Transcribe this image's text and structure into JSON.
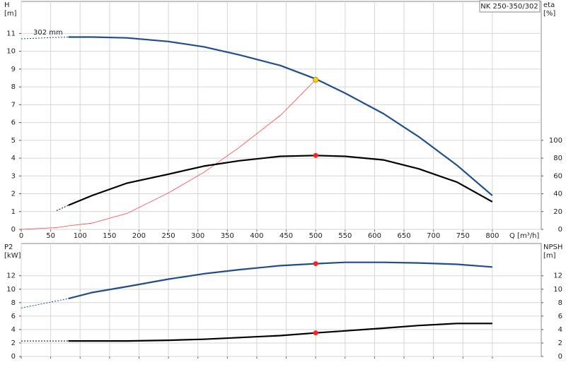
{
  "chart_data": [
    {
      "type": "line",
      "title": "NK 250-350/302",
      "annotation": "302 mm",
      "xlabel": "Q [m³/h]",
      "ylabel": "H",
      "yunit": "[m]",
      "y2label": "eta",
      "y2unit": "[%]",
      "x": [
        0,
        60,
        80,
        120,
        180,
        250,
        310,
        370,
        440,
        500,
        550,
        615,
        675,
        740,
        800
      ],
      "xlim": [
        0,
        883
      ],
      "xticks": [
        0,
        50,
        100,
        150,
        200,
        250,
        300,
        350,
        400,
        450,
        500,
        550,
        600,
        650,
        700,
        750,
        800
      ],
      "xtick_labels": true,
      "ylim": [
        0,
        12.8
      ],
      "yticks": [
        0,
        1,
        2,
        3,
        4,
        5,
        6,
        7,
        8,
        9,
        10,
        11
      ],
      "y2lim": [
        0,
        256
      ],
      "y2ticks": [
        0,
        20,
        40,
        60,
        80,
        100
      ],
      "grid": true,
      "series": [
        {
          "color": "#1f4e8c",
          "style": "dashed",
          "values": [
            10.7,
            10.78,
            10.8,
            null,
            null,
            null,
            null,
            null,
            null,
            null,
            null,
            null,
            null,
            null,
            null
          ]
        },
        {
          "color": "#1f4e8c",
          "style": "solid",
          "values": [
            null,
            null,
            10.8,
            10.8,
            10.75,
            10.55,
            10.25,
            9.8,
            9.2,
            8.45,
            7.65,
            6.5,
            5.2,
            3.6,
            1.9
          ]
        },
        {
          "color": "#ff4040",
          "style": "thin",
          "values": [
            0,
            0.1,
            0.2,
            0.35,
            0.9,
            2.05,
            3.2,
            4.6,
            6.4,
            8.4,
            null,
            null,
            null,
            null,
            null
          ]
        },
        {
          "color": "#000000",
          "style": "dashed",
          "axis": "y2",
          "values": [
            null,
            21,
            27,
            null,
            null,
            null,
            null,
            null,
            null,
            null,
            null,
            null,
            null,
            null,
            null
          ]
        },
        {
          "color": "#000000",
          "style": "solid",
          "axis": "y2",
          "values": [
            null,
            null,
            27,
            38,
            52,
            62,
            71,
            77,
            82,
            83,
            82,
            78,
            68,
            53,
            31
          ]
        }
      ],
      "points": [
        {
          "x": 500,
          "y": 8.4,
          "color": "#ffd700"
        },
        {
          "x": 500,
          "y": 83,
          "axis": "y2",
          "color": "#ff2020"
        }
      ]
    },
    {
      "type": "line",
      "ylabel": "P2",
      "yunit": "[kW]",
      "y2label": "NPSH",
      "y2unit": "[m]",
      "x": [
        0,
        80,
        120,
        180,
        250,
        310,
        370,
        440,
        500,
        550,
        615,
        675,
        740,
        800
      ],
      "xlim": [
        0,
        883
      ],
      "xticks": [
        0,
        50,
        100,
        150,
        200,
        250,
        300,
        350,
        400,
        450,
        500,
        550,
        600,
        650,
        700,
        750,
        800
      ],
      "xtick_labels": false,
      "ylim": [
        0,
        16.8
      ],
      "yticks": [
        0,
        2,
        4,
        6,
        8,
        10,
        12
      ],
      "y2lim": [
        0,
        16.8
      ],
      "y2ticks": [
        0,
        2,
        4,
        6,
        8,
        10,
        12
      ],
      "grid": true,
      "series": [
        {
          "color": "#1f4e8c",
          "style": "dashed",
          "values": [
            7.2,
            8.6,
            null,
            null,
            null,
            null,
            null,
            null,
            null,
            null,
            null,
            null,
            null,
            null
          ]
        },
        {
          "color": "#1f4e8c",
          "style": "solid",
          "values": [
            null,
            8.6,
            9.5,
            10.4,
            11.5,
            12.3,
            12.9,
            13.5,
            13.8,
            14.0,
            14.0,
            13.9,
            13.7,
            13.3
          ]
        },
        {
          "color": "#000000",
          "style": "dashed",
          "axis": "y2",
          "values": [
            2.3,
            2.3,
            null,
            null,
            null,
            null,
            null,
            null,
            null,
            null,
            null,
            null,
            null,
            null
          ]
        },
        {
          "color": "#000000",
          "style": "solid",
          "axis": "y2",
          "values": [
            null,
            2.3,
            2.3,
            2.3,
            2.4,
            2.55,
            2.8,
            3.1,
            3.5,
            3.8,
            4.2,
            4.6,
            4.9,
            4.9
          ]
        }
      ],
      "points": [
        {
          "x": 500,
          "y": 13.8,
          "color": "#ff2020"
        },
        {
          "x": 500,
          "y": 3.5,
          "axis": "y2",
          "color": "#ff2020"
        }
      ]
    }
  ]
}
